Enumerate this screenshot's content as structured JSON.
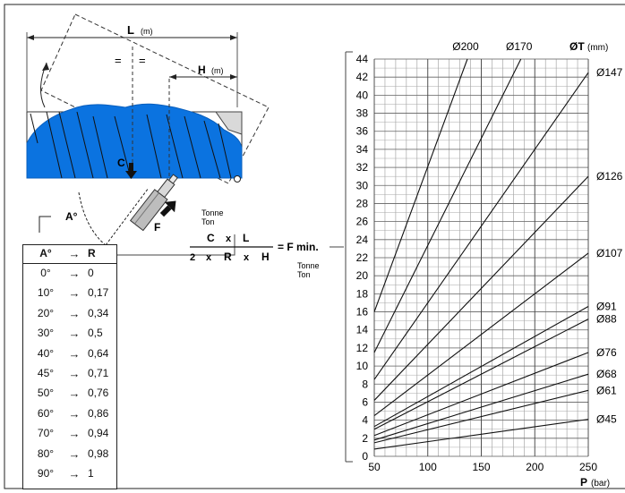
{
  "diagram": {
    "L_label": "L",
    "L_unit": "(m)",
    "H_label": "H",
    "H_unit": "(m)",
    "equal_marks": [
      "=",
      "="
    ],
    "C_label": "C",
    "F_label": "F",
    "A_label": "A°",
    "formula": {
      "unit_top_1": "Tonne",
      "unit_top_2": "Ton",
      "numerator": [
        "C",
        "x",
        "L"
      ],
      "denominator": [
        "2",
        "x",
        "R",
        "x",
        "H"
      ],
      "result": "= F min.",
      "unit_bottom_1": "Tonne",
      "unit_bottom_2": "Ton"
    }
  },
  "table": {
    "headers": [
      "A°",
      "→",
      "R"
    ],
    "rows": [
      {
        "angle": "0°",
        "arrow": "→",
        "r": "0"
      },
      {
        "angle": "10°",
        "arrow": "→",
        "r": "0,17"
      },
      {
        "angle": "20°",
        "arrow": "→",
        "r": "0,34"
      },
      {
        "angle": "30°",
        "arrow": "→",
        "r": "0,5"
      },
      {
        "angle": "40°",
        "arrow": "→",
        "r": "0,64"
      },
      {
        "angle": "45°",
        "arrow": "→",
        "r": "0,71"
      },
      {
        "angle": "50°",
        "arrow": "→",
        "r": "0,76"
      },
      {
        "angle": "60°",
        "arrow": "→",
        "r": "0,86"
      },
      {
        "angle": "70°",
        "arrow": "→",
        "r": "0,94"
      },
      {
        "angle": "80°",
        "arrow": "→",
        "r": "0,98"
      },
      {
        "angle": "90°",
        "arrow": "→",
        "r": "1"
      }
    ]
  },
  "chart_data": {
    "type": "line",
    "xlabel": "P",
    "xunit": "(bar)",
    "ylabel": "",
    "xlim": [
      50,
      250
    ],
    "ylim": [
      0,
      44
    ],
    "x_ticks": [
      "50",
      "100",
      "150",
      "200",
      "250"
    ],
    "y_ticks": [
      "0",
      "2",
      "4",
      "6",
      "8",
      "10",
      "12",
      "14",
      "16",
      "18",
      "20",
      "22",
      "24",
      "26",
      "28",
      "30",
      "32",
      "34",
      "36",
      "38",
      "40",
      "42",
      "44"
    ],
    "grid": true,
    "series_header": "ØT",
    "series_header_unit": "(mm)",
    "series": [
      {
        "name": "Ø200",
        "points": [
          [
            50,
            16
          ],
          [
            137,
            44
          ]
        ]
      },
      {
        "name": "Ø170",
        "points": [
          [
            50,
            11.5
          ],
          [
            187,
            44
          ]
        ]
      },
      {
        "name": "Ø147",
        "points": [
          [
            50,
            8.5
          ],
          [
            250,
            42.5
          ]
        ]
      },
      {
        "name": "Ø126",
        "points": [
          [
            50,
            6.2
          ],
          [
            250,
            31
          ]
        ]
      },
      {
        "name": "Ø107",
        "points": [
          [
            50,
            4.5
          ],
          [
            250,
            22.5
          ]
        ]
      },
      {
        "name": "Ø91",
        "points": [
          [
            50,
            3.3
          ],
          [
            250,
            16.6
          ]
        ]
      },
      {
        "name": "Ø88",
        "points": [
          [
            50,
            3.0
          ],
          [
            250,
            15.2
          ]
        ]
      },
      {
        "name": "Ø76",
        "points": [
          [
            50,
            2.3
          ],
          [
            250,
            11.5
          ]
        ]
      },
      {
        "name": "Ø68",
        "points": [
          [
            50,
            1.8
          ],
          [
            250,
            9.1
          ]
        ]
      },
      {
        "name": "Ø61",
        "points": [
          [
            50,
            1.5
          ],
          [
            250,
            7.3
          ]
        ]
      },
      {
        "name": "Ø45",
        "points": [
          [
            50,
            0.8
          ],
          [
            250,
            4.1
          ]
        ]
      }
    ]
  }
}
